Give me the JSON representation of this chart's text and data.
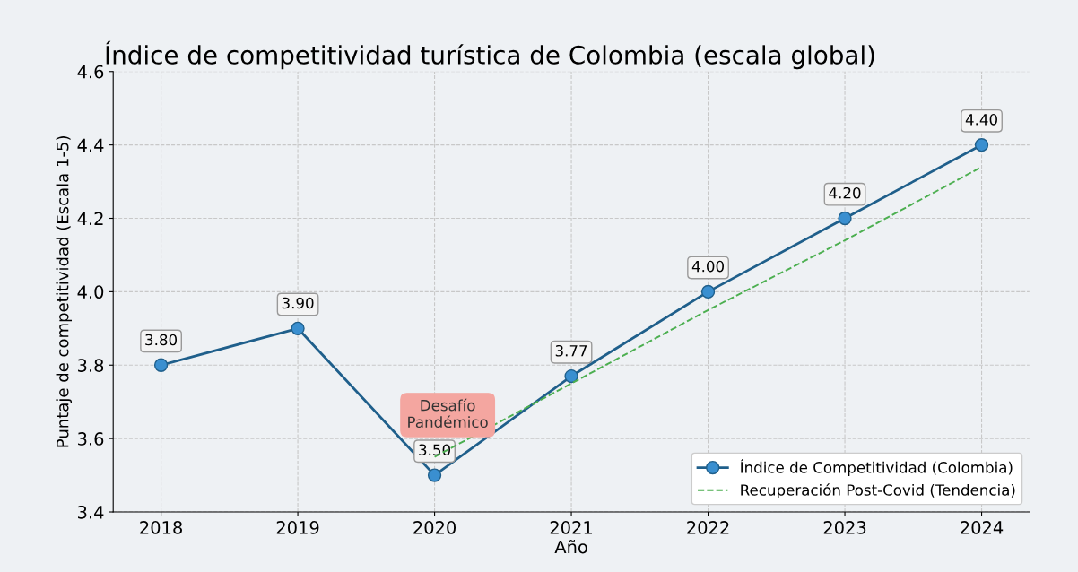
{
  "chart_data": {
    "type": "line",
    "title": "Índice de competitividad turística de Colombia (escala global)",
    "xlabel": "Año",
    "ylabel": "Puntaje de competitividad (Escala 1-5)",
    "categories": [
      "2018",
      "2019",
      "2020",
      "2021",
      "2022",
      "2023",
      "2024"
    ],
    "series": [
      {
        "name": "Índice de Competitividad (Colombia)",
        "color": "#1f5f8b",
        "values": [
          3.8,
          3.9,
          3.5,
          3.77,
          4.0,
          4.2,
          4.4
        ],
        "value_labels": [
          "3.80",
          "3.90",
          "3.50",
          "3.77",
          "4.00",
          "4.20",
          "4.40"
        ],
        "marker": "circle",
        "line_style": "solid"
      },
      {
        "name": "Recuperación Post-Covid (Tendencia)",
        "color": "#4caf50",
        "values": [
          null,
          null,
          3.55,
          3.75,
          3.95,
          4.14,
          4.34
        ],
        "marker": "none",
        "line_style": "dashed"
      }
    ],
    "annotations": [
      "Desafío\nPandémico"
    ],
    "ylim": [
      3.4,
      4.6
    ],
    "yticks": [
      3.4,
      3.6,
      3.8,
      {
        "value": 4.0,
        "label": "4.0"
      },
      4.2,
      4.4,
      4.6
    ],
    "grid": true,
    "legend": "bottom right"
  }
}
